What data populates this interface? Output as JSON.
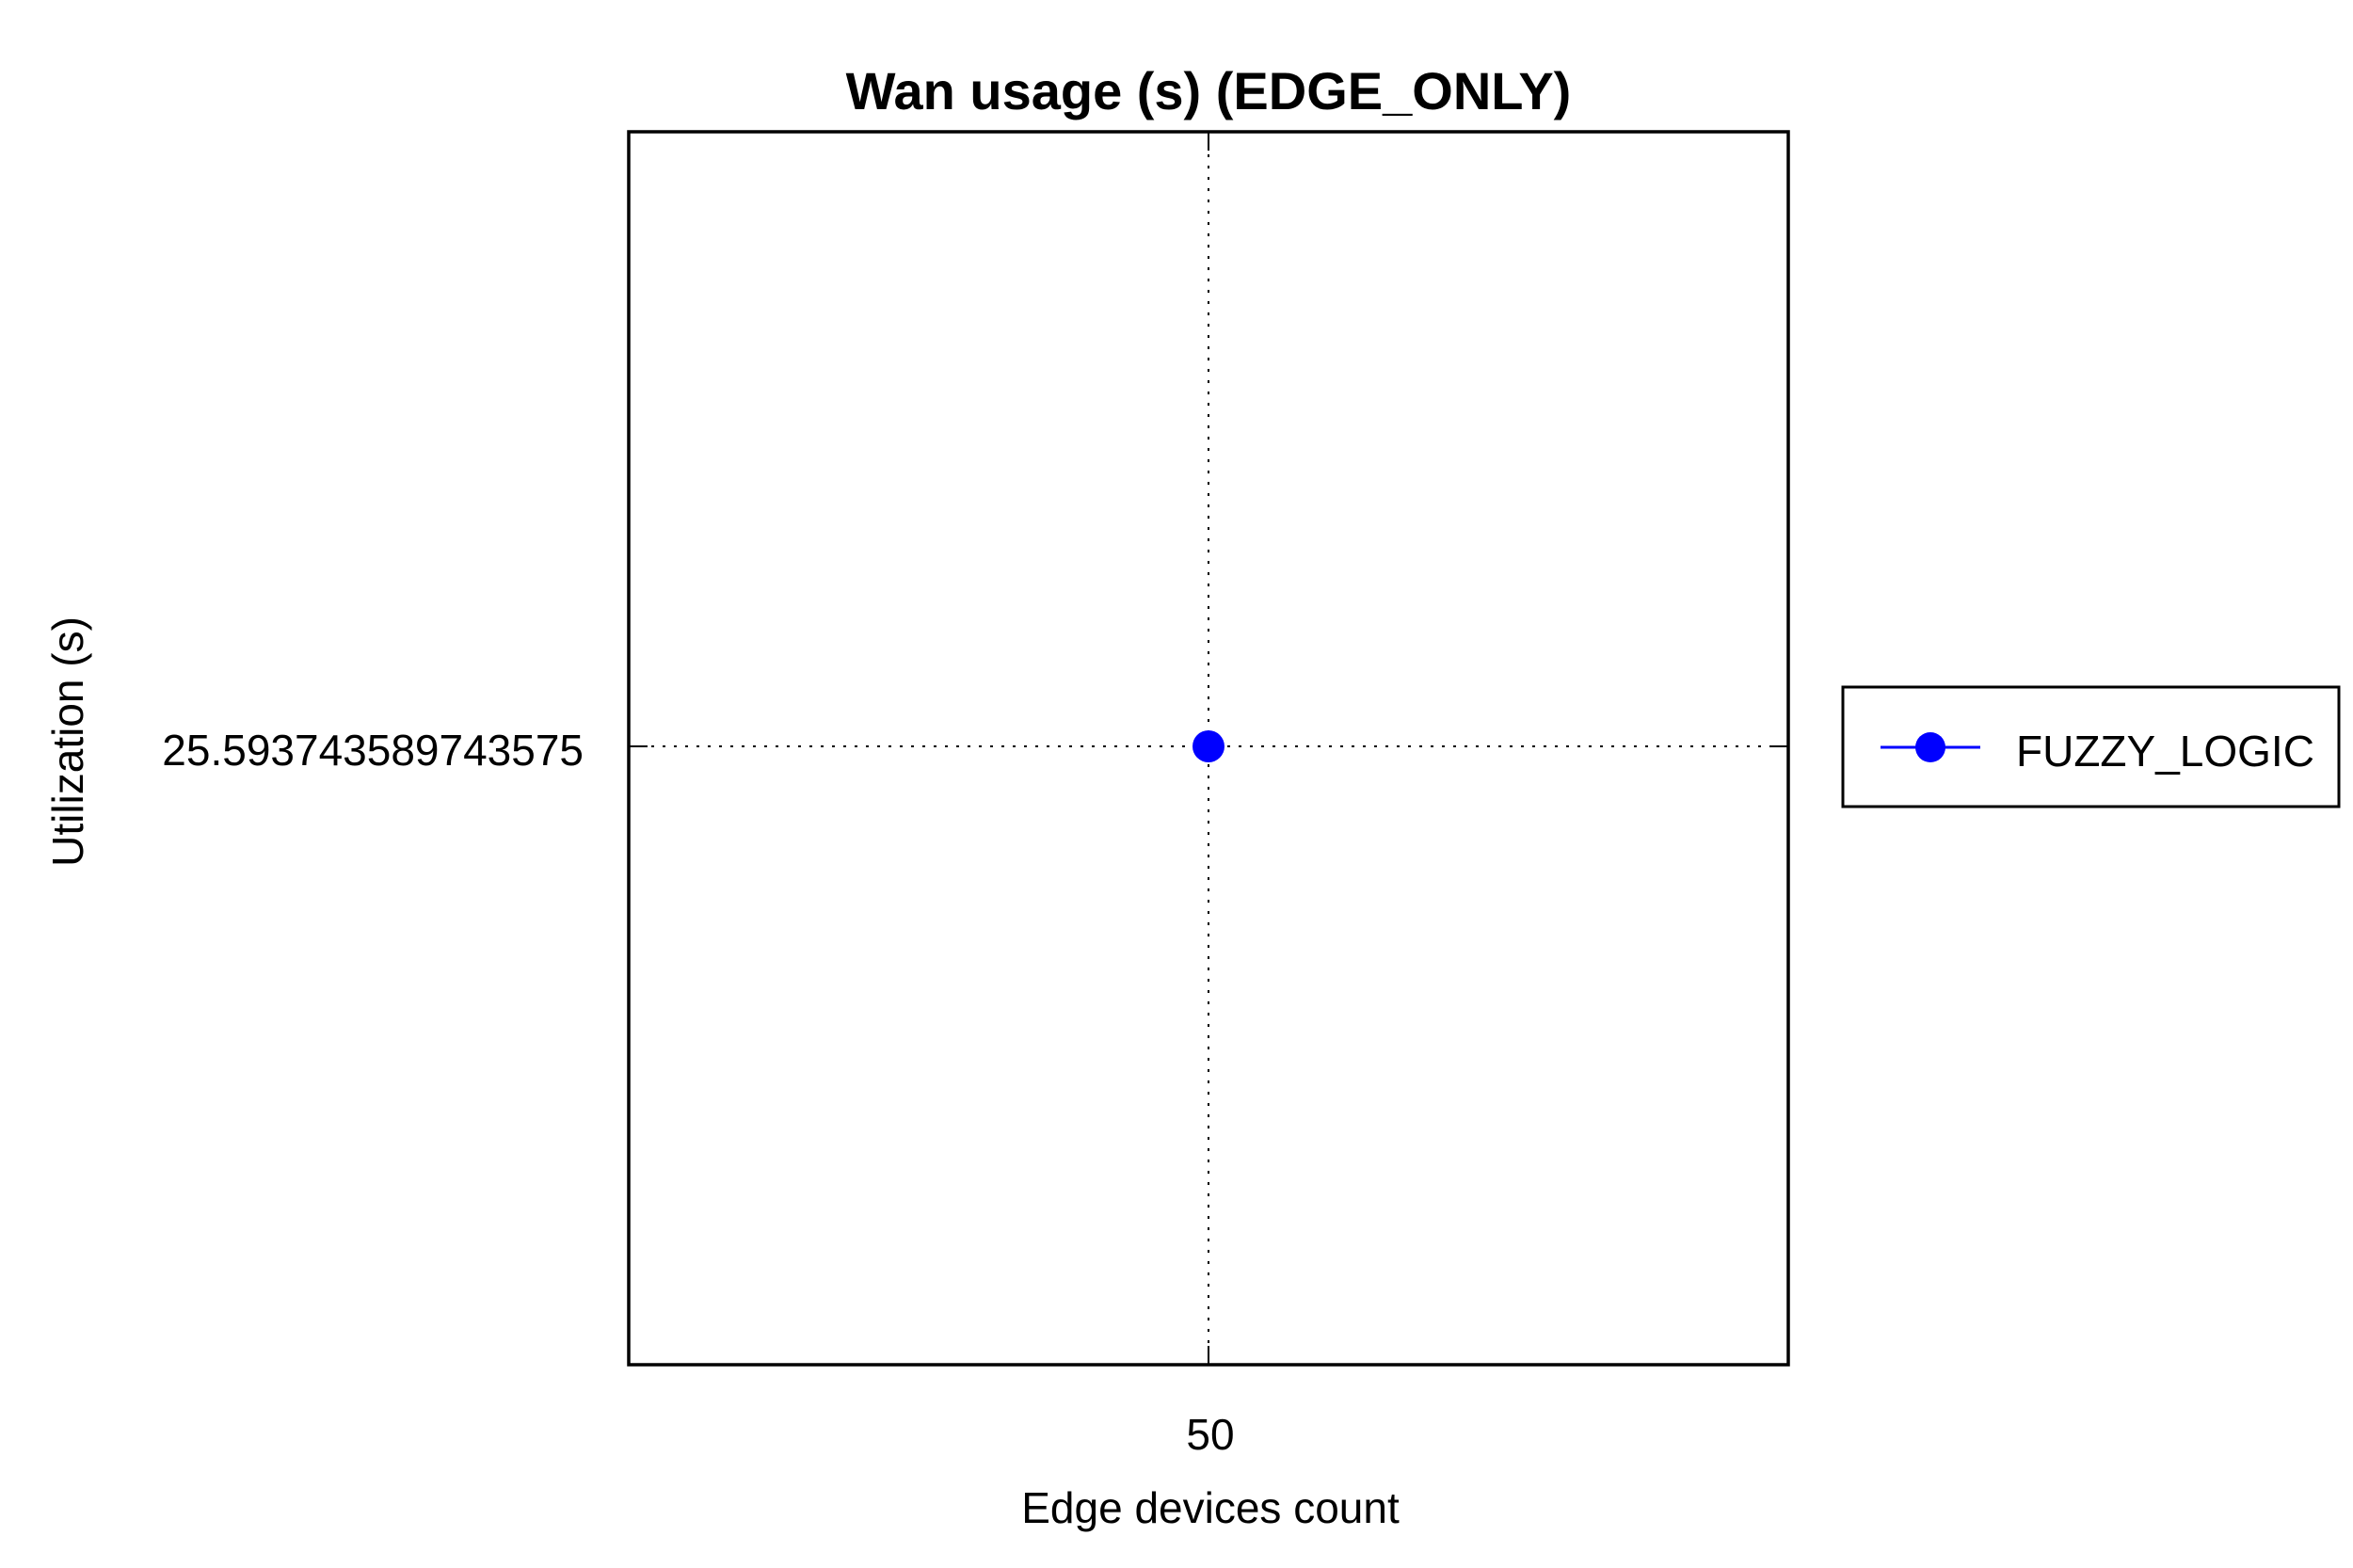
{
  "chart_data": {
    "type": "line",
    "title": "Wan usage (s) (EDGE_ONLY)",
    "xlabel": "Edge devices count",
    "ylabel": "Utilization (s)",
    "x": [
      50
    ],
    "x_tick_labels": [
      "50"
    ],
    "y_tick_labels": [
      "25.593743589743575"
    ],
    "series": [
      {
        "name": "FUZZY_LOGIC",
        "color": "#0000ff",
        "marker": "circle",
        "values": [
          25.593743589743575
        ]
      }
    ],
    "grid": true,
    "grid_style": "dotted",
    "legend_position": "right"
  }
}
